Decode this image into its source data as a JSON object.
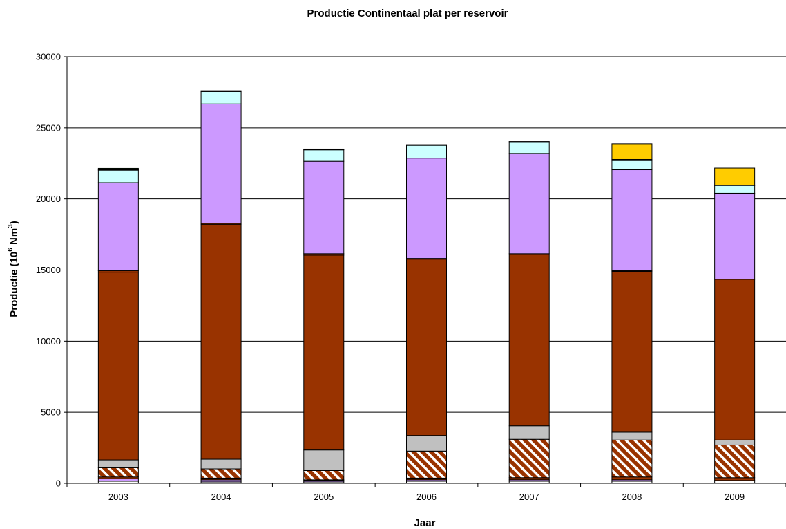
{
  "chart_data": {
    "type": "bar",
    "stacked": true,
    "title": "Productie Continentaal plat per reservoir",
    "xlabel": "Jaar",
    "ylabel": "Productie (10",
    "ylabel_sup": "6",
    "ylabel_unit": " Nm",
    "ylabel_sup2": "3",
    "ylabel_close": ")",
    "ylim": [
      0,
      30000
    ],
    "yticks": [
      "0",
      "5000",
      "10000",
      "15000",
      "20000",
      "25000",
      "30000"
    ],
    "grid": true,
    "categories": [
      "2003",
      "2004",
      "2005",
      "2006",
      "2007",
      "2008",
      "2009"
    ],
    "series": [
      {
        "color": "#ffffff",
        "values": [
          150,
          100,
          100,
          150,
          150,
          150,
          200
        ]
      },
      {
        "color": "#cc99ff",
        "values": [
          180,
          150,
          100,
          100,
          100,
          100,
          0
        ]
      },
      {
        "color": "#993300",
        "values": [
          120,
          120,
          50,
          120,
          150,
          200,
          200
        ]
      },
      {
        "color": "#993300",
        "pattern": "hatch",
        "values": [
          650,
          650,
          650,
          1900,
          2700,
          2600,
          2300
        ]
      },
      {
        "color": "#c0c0c0",
        "values": [
          550,
          680,
          1450,
          1100,
          950,
          550,
          350
        ]
      },
      {
        "color": "#993300",
        "values": [
          13200,
          16500,
          13700,
          12400,
          12050,
          11300,
          11300
        ]
      },
      {
        "color": "#993300",
        "values": [
          100,
          80,
          100,
          50,
          50,
          50,
          0
        ]
      },
      {
        "color": "#cc99ff",
        "values": [
          6200,
          8400,
          6500,
          7050,
          7050,
          7100,
          6050
        ]
      },
      {
        "color": "#ccffff",
        "values": [
          870,
          870,
          800,
          900,
          780,
          650,
          550
        ]
      },
      {
        "color": "#000000",
        "values": [
          40,
          40,
          40,
          50,
          40,
          80,
          20
        ]
      },
      {
        "color": "#33cc33",
        "values": [
          90,
          20,
          20,
          0,
          20,
          0,
          0
        ]
      },
      {
        "color": "#ffcc00",
        "values": [
          0,
          0,
          0,
          0,
          0,
          1100,
          1200
        ]
      }
    ]
  }
}
